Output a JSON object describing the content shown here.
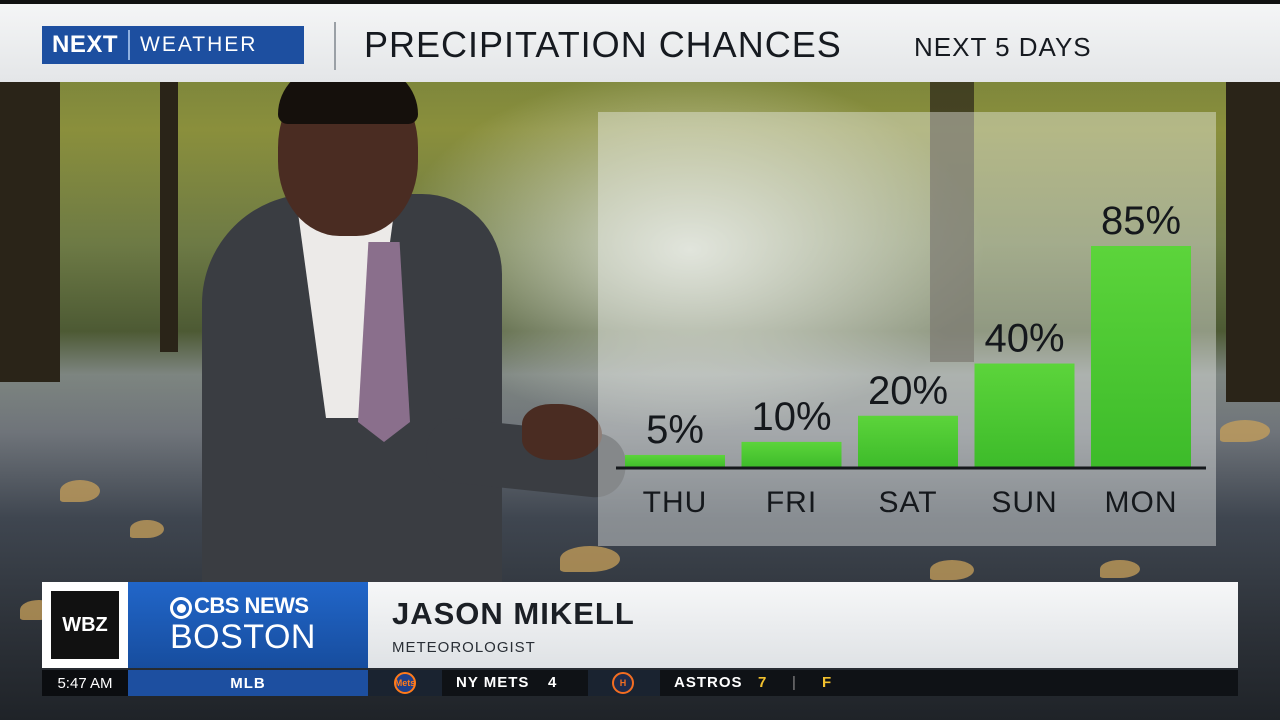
{
  "header": {
    "brand_next": "NEXT",
    "brand_weather": "WEATHER",
    "title": "PRECIPITATION CHANCES",
    "subtitle": "NEXT 5 DAYS"
  },
  "chart_data": {
    "type": "bar",
    "title": "PRECIPITATION CHANCES",
    "subtitle": "NEXT 5 DAYS",
    "categories": [
      "THU",
      "FRI",
      "SAT",
      "SUN",
      "MON"
    ],
    "values": [
      5,
      10,
      20,
      40,
      85
    ],
    "value_labels": [
      "5%",
      "10%",
      "20%",
      "40%",
      "85%"
    ],
    "unit": "%",
    "ylim": [
      0,
      85
    ],
    "grid": false,
    "legend": "none",
    "bar_color": "#3dbb2a",
    "bar_color_light": "#5cd43b"
  },
  "lower_third": {
    "station_logo": "WBZ",
    "network": "CBS NEWS",
    "network_icon": "cbs-eye-icon",
    "city": "BOSTON",
    "name": "JASON MIKELL",
    "role": "METEOROLOGIST"
  },
  "ticker": {
    "time": "5:47 AM",
    "league": "MLB",
    "team1": {
      "name": "NY METS",
      "score": "4",
      "logo": "mets-logo-icon",
      "logo_text": "Mets"
    },
    "team2": {
      "name": "ASTROS",
      "score": "7",
      "logo": "astros-logo-icon",
      "logo_text": "H"
    },
    "status": "F",
    "colors": {
      "score": "#f2c12e",
      "status": "#f2c12e"
    }
  }
}
